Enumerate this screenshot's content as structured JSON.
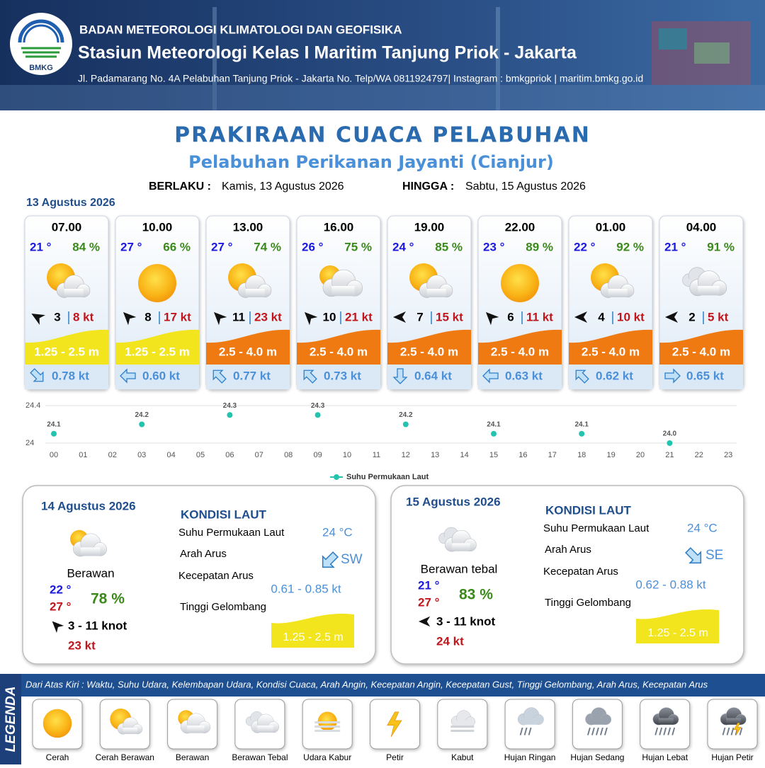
{
  "header": {
    "logo": "BMKG",
    "org": "BADAN METEOROLOGI KLIMATOLOGI DAN GEOFISIKA",
    "station": "Stasiun Meteorologi Kelas I Maritim Tanjung Priok - Jakarta",
    "address": "Jl. Padamarang No. 4A Pelabuhan Tanjung Priok - Jakarta No. Telp/WA 0811924797| Instagram : bmkgpriok | maritim.bmkg.go.id"
  },
  "title": "PRAKIRAAN CUACA PELABUHAN",
  "subtitle": "Pelabuhan Perikanan Jayanti (Cianjur)",
  "validity": {
    "from_label": "BERLAKU :",
    "from": "Kamis, 13 Agustus 2026",
    "to_label": "HINGGA :",
    "to": "Sabtu, 15 Agustus 2026"
  },
  "today": {
    "date": "13 Agustus 2026",
    "forecasts": [
      {
        "time": "07.00",
        "temp": "21 °",
        "humidity": "84 %",
        "wind": "3",
        "gust": "8 kt",
        "wave": "1.25 - 2.5 m",
        "wave_color": "#f2e51e",
        "current": "0.78 kt"
      },
      {
        "time": "10.00",
        "temp": "27 °",
        "humidity": "66 %",
        "wind": "8",
        "gust": "17 kt",
        "wave": "1.25 - 2.5 m",
        "wave_color": "#f2e51e",
        "current": "0.60 kt"
      },
      {
        "time": "13.00",
        "temp": "27 °",
        "humidity": "74 %",
        "wind": "11",
        "gust": "23 kt",
        "wave": "2.5 - 4.0 m",
        "wave_color": "#f07a12",
        "current": "0.77 kt"
      },
      {
        "time": "16.00",
        "temp": "26 °",
        "humidity": "75 %",
        "wind": "10",
        "gust": "21 kt",
        "wave": "2.5 - 4.0 m",
        "wave_color": "#f07a12",
        "current": "0.73 kt"
      },
      {
        "time": "19.00",
        "temp": "24 °",
        "humidity": "85 %",
        "wind": "7",
        "gust": "15 kt",
        "wave": "2.5 - 4.0 m",
        "wave_color": "#f07a12",
        "current": "0.64 kt"
      },
      {
        "time": "22.00",
        "temp": "23 °",
        "humidity": "89 %",
        "wind": "6",
        "gust": "11 kt",
        "wave": "2.5 - 4.0 m",
        "wave_color": "#f07a12",
        "current": "0.63 kt"
      },
      {
        "time": "01.00",
        "temp": "22 °",
        "humidity": "92 %",
        "wind": "4",
        "gust": "10 kt",
        "wave": "2.5 - 4.0 m",
        "wave_color": "#f07a12",
        "current": "0.62 kt"
      },
      {
        "time": "04.00",
        "temp": "21 °",
        "humidity": "91 %",
        "wind": "2",
        "gust": "5 kt",
        "wave": "2.5 - 4.0 m",
        "wave_color": "#f07a12",
        "current": "0.65 kt"
      }
    ]
  },
  "chart_data": {
    "type": "line",
    "categories": [
      "00",
      "01",
      "02",
      "03",
      "04",
      "05",
      "06",
      "07",
      "08",
      "09",
      "10",
      "11",
      "12",
      "13",
      "14",
      "15",
      "16",
      "17",
      "18",
      "19",
      "20",
      "21",
      "22",
      "23"
    ],
    "series": [
      {
        "name": "Suhu Permukaan Laut",
        "color": "#22c4b0",
        "values": [
          24.1,
          null,
          null,
          24.2,
          null,
          null,
          24.3,
          null,
          null,
          24.3,
          null,
          null,
          24.2,
          null,
          null,
          24.1,
          null,
          null,
          24.1,
          null,
          null,
          24.0,
          null,
          null
        ],
        "value_labels": [
          "24.1",
          null,
          null,
          "24.2",
          null,
          null,
          "24.3",
          null,
          null,
          "24.3",
          null,
          null,
          "24.2",
          null,
          null,
          "24.1",
          null,
          null,
          "24.1",
          null,
          null,
          "24.0",
          null,
          null
        ]
      }
    ],
    "ylim": [
      24,
      24.4
    ],
    "yticks": [
      24,
      24.4
    ]
  },
  "days": [
    {
      "date": "14 Agustus 2026",
      "condition": "Berawan",
      "temp_min": "22 °",
      "temp_max": "27 °",
      "humidity": "78 %",
      "wind": "3 - 11 knot",
      "gust": "23 kt",
      "sea": {
        "title": "KONDISI LAUT",
        "sst_label": "Suhu Permukaan Laut",
        "sst": "24 °C",
        "dir_label": "Arah Arus",
        "dir": "SW",
        "speed_label": "Kecepatan Arus",
        "speed": "0.61 - 0.85 kt",
        "wave_label": "Tinggi Gelombang",
        "wave": "1.25 - 2.5 m"
      }
    },
    {
      "date": "15 Agustus 2026",
      "condition": "Berawan tebal",
      "temp_min": "21 °",
      "temp_max": "27 °",
      "humidity": "83 %",
      "wind": "3 - 11 knot",
      "gust": "24 kt",
      "sea": {
        "title": "KONDISI LAUT",
        "sst_label": "Suhu Permukaan Laut",
        "sst": "24 °C",
        "dir_label": "Arah Arus",
        "dir": "SE",
        "speed_label": "Kecepatan Arus",
        "speed": "0.62 - 0.88 kt",
        "wave_label": "Tinggi Gelombang",
        "wave": "1.25 - 2.5 m"
      }
    }
  ],
  "legend": {
    "title": "LEGENDA",
    "description": "Dari Atas Kiri : Waktu, Suhu Udara, Kelembapan Udara, Kondisi Cuaca, Arah Angin, Kecepatan Angin, Kecepatan Gust, Tinggi Gelombang, Arah Arus, Kecepatan Arus",
    "items": [
      "Cerah",
      "Cerah Berawan",
      "Berawan",
      "Berawan Tebal",
      "Udara Kabur",
      "Petir",
      "Kabut",
      "Hujan Ringan",
      "Hujan Sedang",
      "Hujan Lebat",
      "Hujan Petir"
    ]
  }
}
